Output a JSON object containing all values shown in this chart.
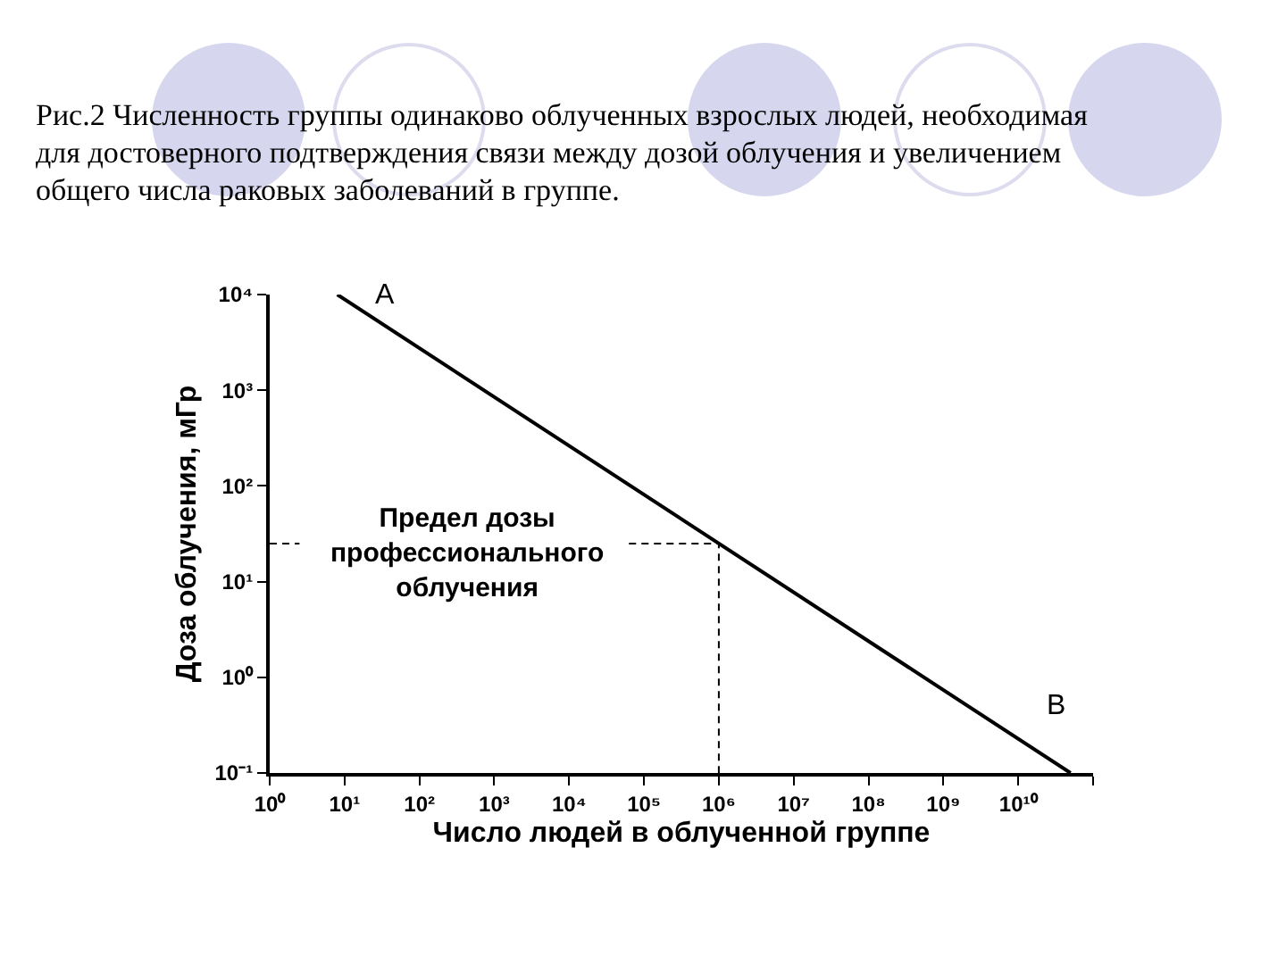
{
  "chart_data": {
    "type": "line",
    "title": "Рис.2 Численность группы одинаково облученных взрослых людей, необходимая для достоверного подтверждения связи между дозой облучения и увеличением общего числа раковых заболеваний в группе.",
    "xlabel": "Число людей в облученной группе",
    "ylabel": "Доза облучения, мГр",
    "log": "xy",
    "xlim": [
      1,
      100000000000
    ],
    "xticks": [
      {
        "value": 1,
        "label": "10⁰"
      },
      {
        "value": 10,
        "label": "10¹"
      },
      {
        "value": 100,
        "label": "10²"
      },
      {
        "value": 1000,
        "label": "10³"
      },
      {
        "value": 10000,
        "label": "10⁴"
      },
      {
        "value": 100000,
        "label": "10⁵"
      },
      {
        "value": 1000000,
        "label": "10⁶"
      },
      {
        "value": 10000000,
        "label": "10⁷"
      },
      {
        "value": 100000000,
        "label": "10⁸"
      },
      {
        "value": 1000000000,
        "label": "10⁹"
      },
      {
        "value": 10000000000,
        "label": "10¹⁰"
      },
      {
        "value": 100000000000,
        "label": null
      }
    ],
    "ylim": [
      0.1,
      10000
    ],
    "yticks": [
      {
        "value": 0.1,
        "label": "10⁻¹"
      },
      {
        "value": 1,
        "label": "10⁰"
      },
      {
        "value": 10,
        "label": "10¹"
      },
      {
        "value": 100,
        "label": "10²"
      },
      {
        "value": 1000,
        "label": "10³"
      },
      {
        "value": 10000,
        "label": "10⁴"
      }
    ],
    "series": [
      {
        "color": "#000000",
        "x": [
          8,
          50000000000
        ],
        "values": [
          10000,
          0.1
        ]
      },
      {
        "color": "#000000",
        "line_style": "dashed",
        "x": [
          1,
          2.5
        ],
        "values": [
          25,
          25
        ]
      },
      {
        "color": "#000000",
        "line_style": "dashed",
        "x": [
          63000,
          1000000,
          1000000
        ],
        "values": [
          25,
          25,
          0.1
        ]
      }
    ],
    "annotations": [
      "A",
      "B",
      "Предел дозы\nпрофессионального\nоблучения"
    ]
  }
}
